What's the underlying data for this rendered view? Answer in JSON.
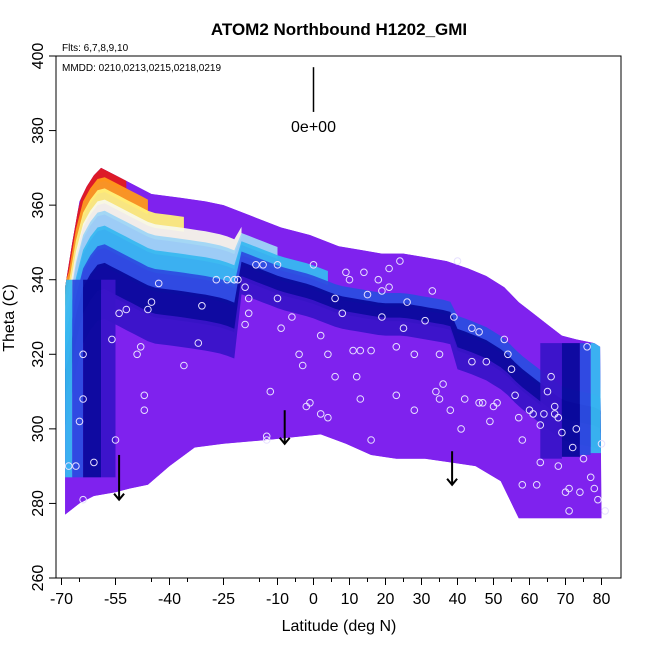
{
  "chart_data": {
    "type": "heatmap",
    "title": "ATOM2 Northbound H1202_GMI",
    "flights_note": "Flts: 6,7,8,9,10",
    "dates_note": "MMDD: 0210,0213,0215,0218,0219",
    "xlabel": "Latitude (deg N)",
    "ylabel": "Theta (C)",
    "xlim": [
      -70,
      82
    ],
    "ylim": [
      260,
      400
    ],
    "x_ticks": [
      -70,
      -55,
      -40,
      -25,
      -10,
      0,
      10,
      20,
      30,
      40,
      50,
      60,
      70,
      80
    ],
    "x_tick_labels": [
      "-70",
      "-55",
      "-40",
      "-25",
      "-10",
      "0",
      "10",
      "20",
      "30",
      "40",
      "50",
      "60",
      "70",
      "80"
    ],
    "y_ticks": [
      260,
      280,
      300,
      320,
      340,
      360,
      380,
      400
    ],
    "y_tick_labels": [
      "260",
      "280",
      "300",
      "320",
      "340",
      "360",
      "380",
      "400"
    ],
    "scale_bar": {
      "label": "0e+00",
      "lat": 0,
      "theta_top": 397,
      "theta_bottom": 385
    },
    "colors": {
      "background": "#7f22ee",
      "core": "#7a1ff0",
      "band_dark": "#0a0a9c",
      "band_mid": "#2c4de0",
      "band_light": "#38b8f0",
      "tropo_white": "#f8f8e8",
      "yellow": "#fff07a",
      "orange": "#ff9a1a",
      "red": "#e31a1c"
    },
    "domain_top": [
      [
        -69,
        338
      ],
      [
        -67,
        350
      ],
      [
        -65,
        361
      ],
      [
        -63,
        365
      ],
      [
        -61,
        368
      ],
      [
        -59,
        370
      ],
      [
        -55,
        368
      ],
      [
        -51,
        366
      ],
      [
        -45,
        363
      ],
      [
        -37,
        362
      ],
      [
        -30,
        361
      ],
      [
        -25,
        360
      ],
      [
        -17,
        357
      ],
      [
        -9,
        354
      ],
      [
        -1,
        352
      ],
      [
        7,
        349
      ],
      [
        13,
        348
      ],
      [
        19,
        347
      ],
      [
        25,
        347
      ],
      [
        31,
        346
      ],
      [
        37,
        345
      ],
      [
        43,
        343
      ],
      [
        48,
        341
      ],
      [
        53,
        338
      ],
      [
        57,
        334
      ],
      [
        61,
        331
      ],
      [
        65,
        328
      ],
      [
        69,
        325
      ],
      [
        73,
        324
      ],
      [
        78,
        323
      ],
      [
        79.6,
        322
      ]
    ],
    "domain_bottom": [
      [
        -69,
        277
      ],
      [
        -65,
        280
      ],
      [
        -61,
        282
      ],
      [
        -55,
        283
      ],
      [
        -51,
        284
      ],
      [
        -46,
        285
      ],
      [
        -40,
        290
      ],
      [
        -33,
        295
      ],
      [
        -25,
        296
      ],
      [
        -13,
        297
      ],
      [
        -3,
        298
      ],
      [
        2,
        298.5
      ],
      [
        9,
        296
      ],
      [
        16,
        293
      ],
      [
        23,
        292
      ],
      [
        31,
        292
      ],
      [
        38,
        291
      ],
      [
        45,
        290
      ],
      [
        52,
        286
      ],
      [
        57,
        276
      ],
      [
        80,
        276
      ]
    ],
    "arrows": [
      {
        "lat": -54,
        "theta_top": 293,
        "theta_bottom": 281
      },
      {
        "lat": -8,
        "theta_top": 305,
        "theta_bottom": 296
      },
      {
        "lat": 38.5,
        "theta_top": 294,
        "theta_bottom": 285
      }
    ],
    "points": [
      [
        -66,
        290
      ],
      [
        -64,
        281
      ],
      [
        -61,
        291
      ],
      [
        -64,
        308
      ],
      [
        -68,
        290
      ],
      [
        -65,
        302
      ],
      [
        -56,
        324
      ],
      [
        -54,
        331
      ],
      [
        -52,
        332
      ],
      [
        -49,
        320
      ],
      [
        -48,
        322
      ],
      [
        -46,
        332
      ],
      [
        -45,
        334
      ],
      [
        -43,
        339
      ],
      [
        -47,
        309
      ],
      [
        -47,
        305
      ],
      [
        -55,
        297
      ],
      [
        -36,
        317
      ],
      [
        -32,
        323
      ],
      [
        -31,
        333
      ],
      [
        -27,
        340
      ],
      [
        -24,
        340
      ],
      [
        -22,
        340
      ],
      [
        -21,
        340
      ],
      [
        -19,
        338
      ],
      [
        -19,
        328
      ],
      [
        -18,
        335
      ],
      [
        -18,
        331
      ],
      [
        -16,
        344
      ],
      [
        -14,
        344
      ],
      [
        -12,
        310
      ],
      [
        -13,
        297
      ],
      [
        -13,
        298
      ],
      [
        -10,
        344
      ],
      [
        -10,
        335
      ],
      [
        -9,
        327
      ],
      [
        -6,
        330
      ],
      [
        -4,
        320
      ],
      [
        -3,
        317
      ],
      [
        -2,
        306
      ],
      [
        -1,
        307
      ],
      [
        0,
        344
      ],
      [
        2,
        325
      ],
      [
        2,
        304
      ],
      [
        4,
        320
      ],
      [
        4,
        303
      ],
      [
        6,
        335
      ],
      [
        6,
        314
      ],
      [
        8,
        331
      ],
      [
        9,
        342
      ],
      [
        10,
        340
      ],
      [
        11,
        321
      ],
      [
        12,
        314
      ],
      [
        13,
        308
      ],
      [
        13,
        321
      ],
      [
        14,
        342
      ],
      [
        15,
        336
      ],
      [
        16,
        321
      ],
      [
        16,
        297
      ],
      [
        18,
        340
      ],
      [
        19,
        330
      ],
      [
        19,
        337
      ],
      [
        21,
        343
      ],
      [
        21,
        338
      ],
      [
        23,
        309
      ],
      [
        23,
        322
      ],
      [
        24,
        345
      ],
      [
        25,
        327
      ],
      [
        26,
        334
      ],
      [
        28,
        320
      ],
      [
        28,
        305
      ],
      [
        31,
        329
      ],
      [
        33,
        337
      ],
      [
        34,
        310
      ],
      [
        35,
        320
      ],
      [
        35,
        308
      ],
      [
        36,
        312
      ],
      [
        38,
        305
      ],
      [
        39,
        330
      ],
      [
        40,
        345
      ],
      [
        41,
        300
      ],
      [
        42,
        308
      ],
      [
        44,
        318
      ],
      [
        44,
        327
      ],
      [
        46,
        326
      ],
      [
        46,
        307
      ],
      [
        47,
        307
      ],
      [
        48,
        318
      ],
      [
        49,
        302
      ],
      [
        50,
        306
      ],
      [
        51,
        307
      ],
      [
        53,
        324
      ],
      [
        54,
        320
      ],
      [
        55,
        316
      ],
      [
        56,
        309
      ],
      [
        57,
        303
      ],
      [
        58,
        297
      ],
      [
        58,
        285
      ],
      [
        60,
        305
      ],
      [
        61,
        304
      ],
      [
        62,
        285
      ],
      [
        63,
        301
      ],
      [
        63,
        291
      ],
      [
        64,
        304
      ],
      [
        65,
        310
      ],
      [
        66,
        314
      ],
      [
        67,
        306
      ],
      [
        68,
        303
      ],
      [
        68,
        290
      ],
      [
        69,
        299
      ],
      [
        70,
        283
      ],
      [
        71,
        284
      ],
      [
        71,
        278
      ],
      [
        72,
        295
      ],
      [
        73,
        300
      ],
      [
        74,
        283
      ],
      [
        75,
        292
      ],
      [
        76,
        322
      ],
      [
        77,
        287
      ],
      [
        78,
        284
      ],
      [
        79,
        281
      ],
      [
        80,
        296
      ],
      [
        81,
        278
      ],
      [
        67,
        304
      ],
      [
        -64,
        320
      ]
    ]
  }
}
